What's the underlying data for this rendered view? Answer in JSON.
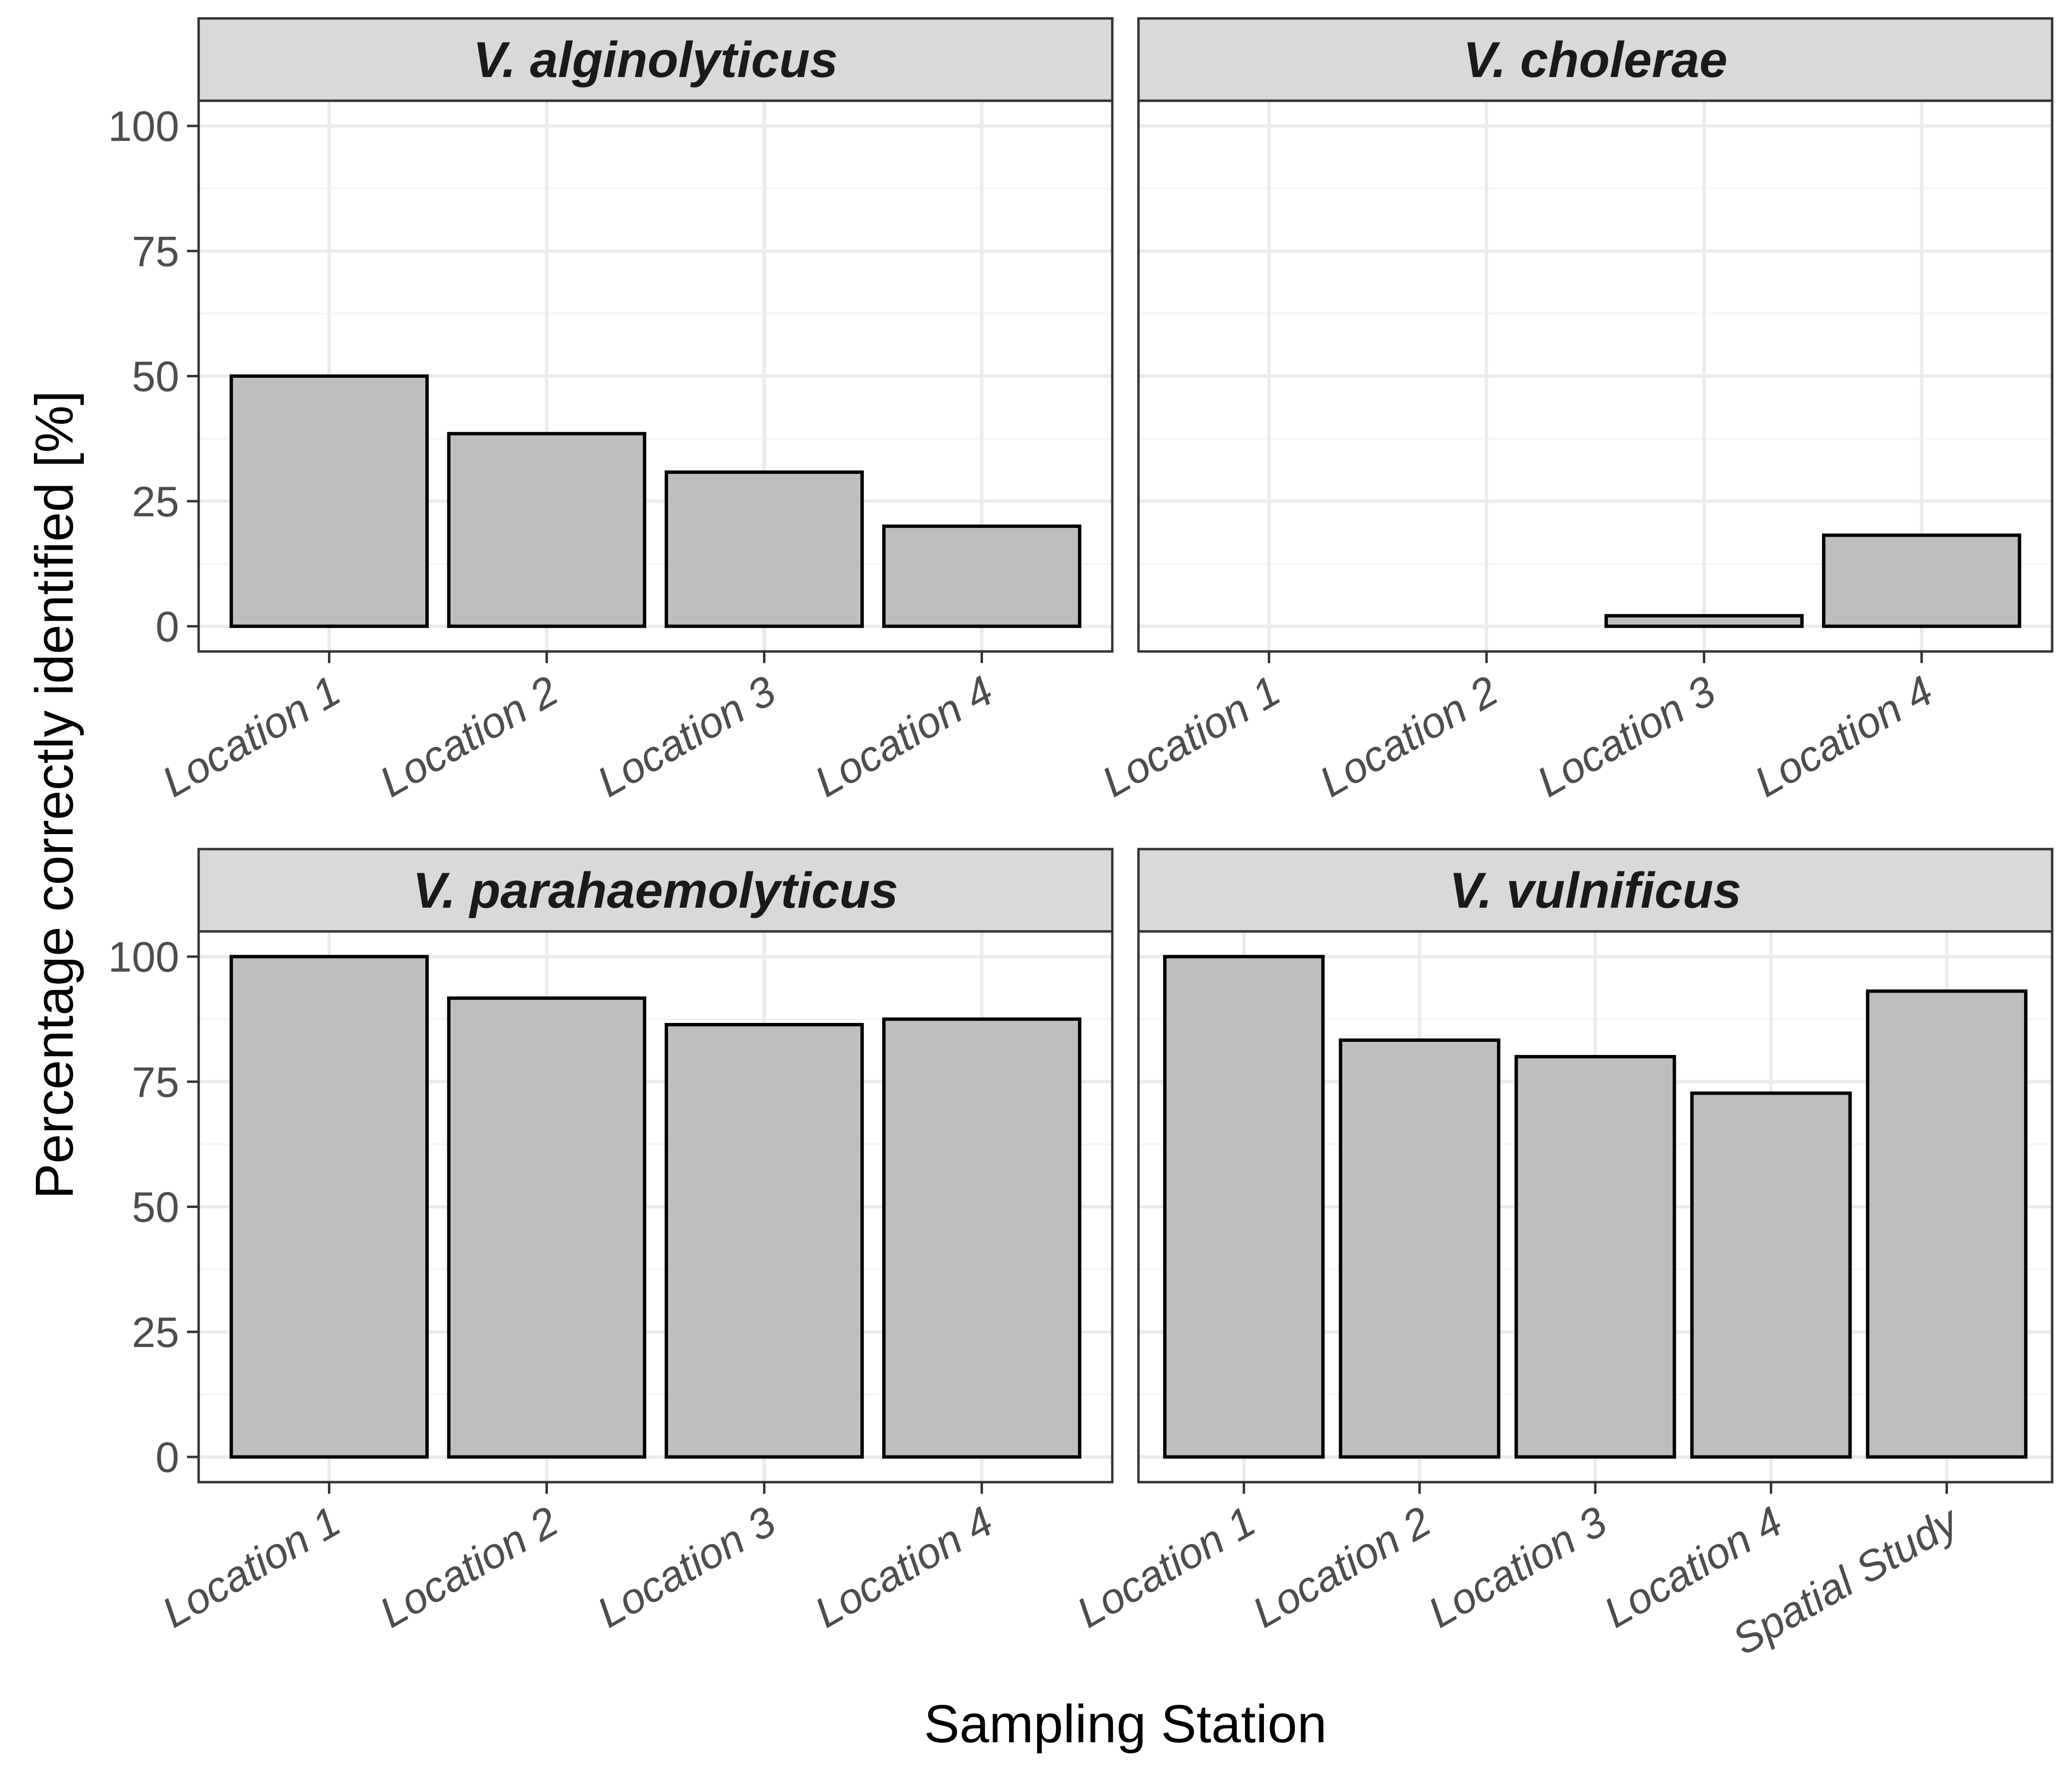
{
  "chart_data": {
    "type": "bar",
    "layout": "facet_wrap 2x2, free x scales",
    "xlabel": "Sampling Station",
    "ylabel": "Percentage correctly identified [%]",
    "ylim": [
      0,
      100
    ],
    "yticks": [
      "0",
      "25",
      "50",
      "75",
      "100"
    ],
    "bar_fill": "#bebebe",
    "bar_outline": "#000000",
    "strip_fill": "#d9d9d9",
    "grid_major": "#ebebeb",
    "grid_minor": "#f5f5f5",
    "panels": [
      {
        "title": "V. alginolyticus",
        "categories": [
          "Location 1",
          "Location 2",
          "Location 3",
          "Location 4"
        ],
        "values": [
          50,
          38.5,
          30.8,
          20
        ]
      },
      {
        "title": "V. cholerae",
        "categories": [
          "Location 1",
          "Location 2",
          "Location 3",
          "Location 4"
        ],
        "values": [
          0,
          0,
          2.1,
          18.2
        ]
      },
      {
        "title": "V. parahaemolyticus",
        "categories": [
          "Location 1",
          "Location 2",
          "Location 3",
          "Location 4"
        ],
        "values": [
          100,
          91.7,
          86.4,
          87.5
        ]
      },
      {
        "title": "V. vulnificus",
        "categories": [
          "Location 1",
          "Location 2",
          "Location 3",
          "Location 4",
          "Spatial Study"
        ],
        "values": [
          100,
          83.3,
          80,
          72.7,
          93.1
        ]
      }
    ]
  }
}
